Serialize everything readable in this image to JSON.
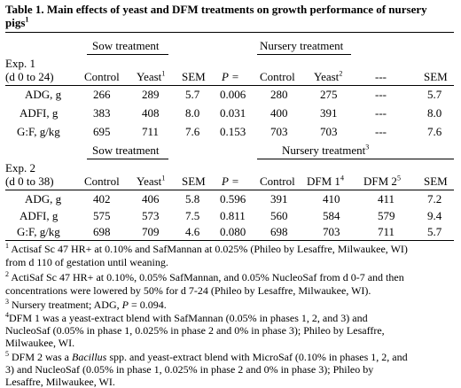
{
  "caption": {
    "label": "Table 1.",
    "text": "Main effects of yeast and DFM treatments on growth performance of nursery",
    "text2": "pigs",
    "sup": "1"
  },
  "exp1": {
    "title": "Exp. 1",
    "period": "(d 0 to 24)",
    "group_sow": "Sow treatment",
    "group_nursery": "Nursery treatment",
    "headers": {
      "sow_control": "Control",
      "sow_yeast": "Yeast",
      "sow_yeast_sup": "1",
      "sow_sem": "SEM",
      "p": "P =",
      "nur_control": "Control",
      "nur_yeast": "Yeast",
      "nur_yeast_sup": "2",
      "nur_dash": "---",
      "nur_sem": "SEM"
    },
    "rows": [
      {
        "label": "ADG, g",
        "sow_control": "266",
        "sow_yeast": "289",
        "sow_sem": "5.7",
        "p": "0.006",
        "nur_control": "280",
        "nur_yeast": "275",
        "dash": "---",
        "nur_sem": "5.7"
      },
      {
        "label": "ADFI, g",
        "sow_control": "383",
        "sow_yeast": "408",
        "sow_sem": "8.0",
        "p": "0.031",
        "nur_control": "400",
        "nur_yeast": "391",
        "dash": "---",
        "nur_sem": "8.0"
      },
      {
        "label": "G:F, g/kg",
        "sow_control": "695",
        "sow_yeast": "711",
        "sow_sem": "7.6",
        "p": "0.153",
        "nur_control": "703",
        "nur_yeast": "703",
        "dash": "---",
        "nur_sem": "7.6"
      }
    ]
  },
  "exp2": {
    "title": "Exp. 2",
    "period": "(d 0 to 38)",
    "group_sow": "Sow treatment",
    "group_nursery": "Nursery treatment",
    "group_nursery_sup": "3",
    "headers": {
      "sow_control": "Control",
      "sow_yeast": "Yeast",
      "sow_yeast_sup": "1",
      "sow_sem": "SEM",
      "p": "P =",
      "nur_control": "Control",
      "dfm1": "DFM 1",
      "dfm1_sup": "4",
      "dfm2": "DFM 2",
      "dfm2_sup": "5",
      "nur_sem": "SEM"
    },
    "rows": [
      {
        "label": "ADG, g",
        "sow_control": "402",
        "sow_yeast": "406",
        "sow_sem": "5.8",
        "p": "0.596",
        "nur_control": "391",
        "dfm1": "410",
        "dfm2": "411",
        "nur_sem": "7.2"
      },
      {
        "label": "ADFI, g",
        "sow_control": "575",
        "sow_yeast": "573",
        "sow_sem": "7.5",
        "p": "0.811",
        "nur_control": "560",
        "dfm1": "584",
        "dfm2": "579",
        "nur_sem": "9.4"
      },
      {
        "label": "G:F, g/kg",
        "sow_control": "698",
        "sow_yeast": "709",
        "sow_sem": "4.6",
        "p": "0.080",
        "nur_control": "698",
        "dfm1": "703",
        "dfm2": "711",
        "nur_sem": "5.7"
      }
    ]
  },
  "footnotes": [
    {
      "sup": "1",
      "lines": [
        "Actisaf Sc 47 HR+ at 0.10% and SafMannan at 0.025% (Phileo by Lesaffre, Milwaukee, WI)",
        "from d 110 of gestation until weaning."
      ]
    },
    {
      "sup": "2",
      "lines": [
        "ActiSaf Sc 47 HR+ at 0.10%, 0.05% SafMannan, and 0.05% NucleoSaf from d 0-7 and then",
        "concentrations were lowered by 50% for d 7-24 (Phileo by Lesaffre, Milwaukee, WI)."
      ]
    },
    {
      "sup": "3",
      "lines": [
        "Nursery treatment; ADG, P = 0.094."
      ]
    },
    {
      "sup": "4",
      "lines": [
        "DFM 1 was a yeast-extract blend with SafMannan (0.05% in phases 1, 2, and 3) and",
        "NucleoSaf (0.05% in phase 1, 0.025% in phase 2 and 0% in phase 3); Phileo by Lesaffre,",
        "Milwaukee, WI."
      ]
    },
    {
      "sup": "5",
      "lines": [
        "DFM 2 was a Bacillus spp. and yeast-extract blend with MicroSaf (0.10% in phases 1, 2, and",
        "3) and NucleoSaf (0.05% in phase 1, 0.025% in phase 2 and 0% in phase 3); Phileo by",
        "Lesaffre, Milwaukee, WI."
      ]
    }
  ]
}
